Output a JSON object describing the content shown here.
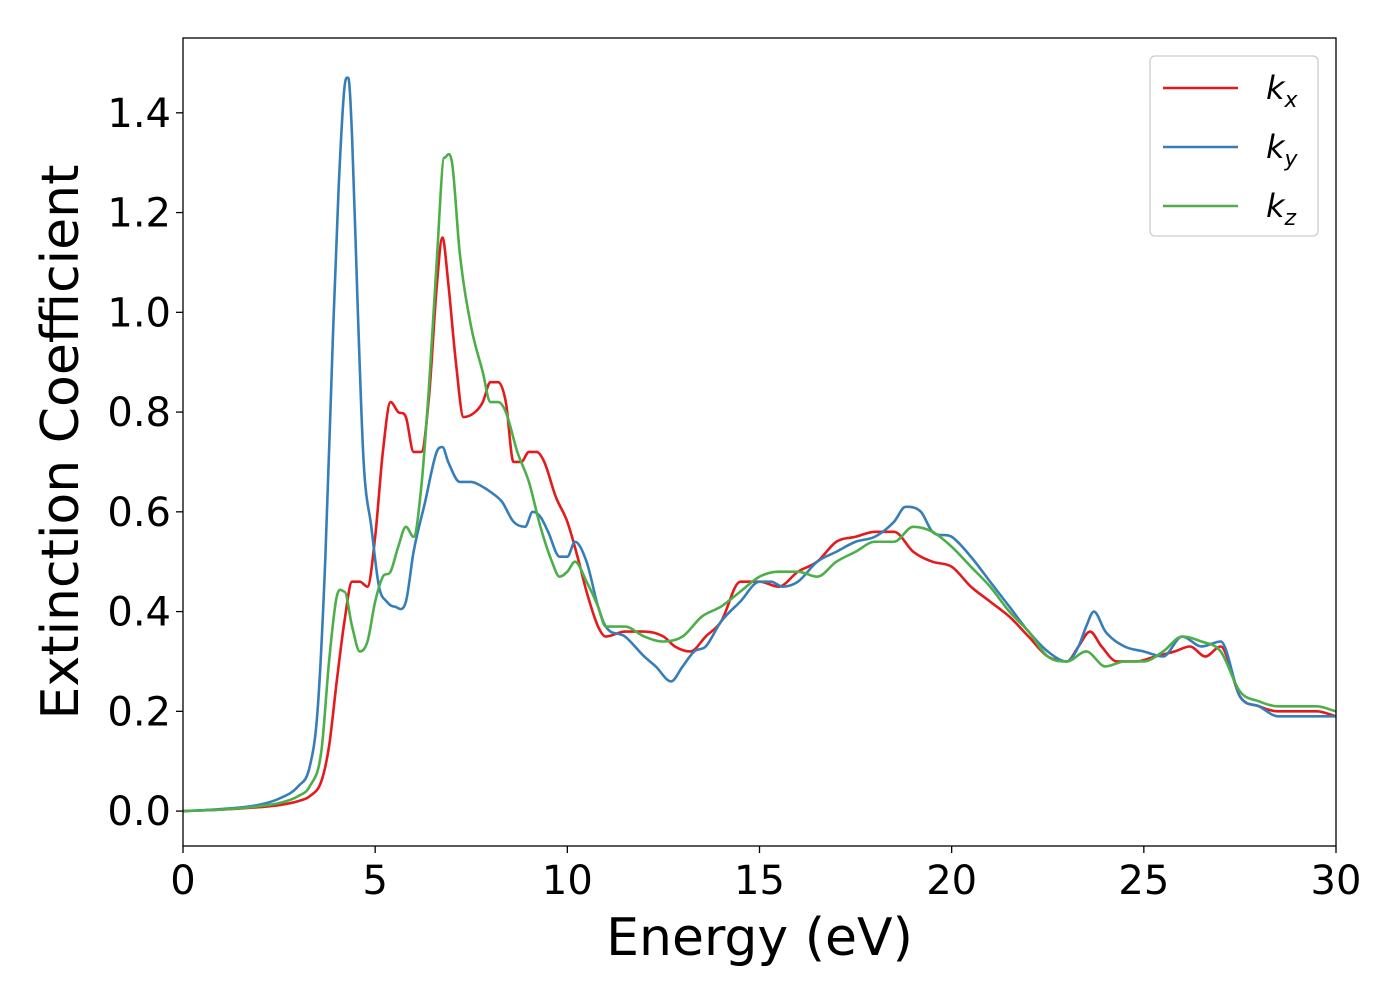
{
  "chart_data": {
    "type": "line",
    "title": "",
    "xlabel": "Energy (eV)",
    "ylabel": "Extinction Coefficient",
    "xlim": [
      0,
      30
    ],
    "ylim": [
      -0.07,
      1.55
    ],
    "xticks": [
      0,
      5,
      10,
      15,
      20,
      25,
      30
    ],
    "xtick_labels": [
      "0",
      "5",
      "10",
      "15",
      "20",
      "25",
      "30"
    ],
    "yticks": [
      0.0,
      0.2,
      0.4,
      0.6,
      0.8,
      1.0,
      1.2,
      1.4
    ],
    "ytick_labels": [
      "0.0",
      "0.2",
      "0.4",
      "0.6",
      "0.8",
      "1.0",
      "1.2",
      "1.4"
    ],
    "grid": false,
    "legend_position": "top-right",
    "series": [
      {
        "name": "k_x",
        "label_main": "k",
        "label_sub": "x",
        "color": "#e41a1c",
        "x": [
          0,
          1,
          2,
          2.5,
          3.0,
          3.3,
          3.6,
          3.8,
          4.0,
          4.2,
          4.4,
          4.6,
          4.8,
          5.0,
          5.2,
          5.4,
          5.6,
          5.8,
          6.0,
          6.2,
          6.4,
          6.6,
          6.75,
          6.9,
          7.1,
          7.3,
          7.6,
          7.8,
          8.0,
          8.2,
          8.4,
          8.6,
          8.8,
          9.0,
          9.2,
          9.4,
          9.7,
          10.0,
          10.3,
          10.5,
          10.8,
          11.0,
          11.5,
          12.0,
          12.5,
          12.8,
          13.2,
          13.6,
          14.0,
          14.5,
          15.0,
          15.5,
          16.0,
          16.5,
          17.0,
          17.5,
          18.0,
          18.5,
          19.0,
          19.5,
          20.0,
          20.5,
          21.0,
          21.5,
          22.0,
          22.5,
          23.0,
          23.3,
          23.6,
          23.9,
          24.3,
          24.8,
          25.3,
          25.8,
          26.2,
          26.6,
          27.0,
          27.5,
          28.0,
          28.5,
          29.0,
          29.5,
          30.0
        ],
        "y": [
          0.0,
          0.003,
          0.008,
          0.012,
          0.02,
          0.03,
          0.06,
          0.13,
          0.26,
          0.38,
          0.46,
          0.46,
          0.45,
          0.55,
          0.72,
          0.82,
          0.8,
          0.79,
          0.72,
          0.72,
          0.83,
          1.05,
          1.15,
          1.06,
          0.9,
          0.79,
          0.8,
          0.82,
          0.86,
          0.86,
          0.82,
          0.7,
          0.7,
          0.72,
          0.72,
          0.7,
          0.63,
          0.58,
          0.5,
          0.44,
          0.37,
          0.35,
          0.36,
          0.36,
          0.35,
          0.33,
          0.32,
          0.35,
          0.38,
          0.46,
          0.46,
          0.45,
          0.48,
          0.5,
          0.54,
          0.55,
          0.56,
          0.56,
          0.52,
          0.5,
          0.49,
          0.45,
          0.42,
          0.39,
          0.35,
          0.31,
          0.3,
          0.33,
          0.36,
          0.33,
          0.3,
          0.3,
          0.31,
          0.32,
          0.33,
          0.31,
          0.33,
          0.23,
          0.21,
          0.2,
          0.2,
          0.2,
          0.19
        ]
      },
      {
        "name": "k_y",
        "label_main": "k",
        "label_sub": "y",
        "color": "#377eb8",
        "x": [
          0,
          1,
          2,
          2.5,
          3.0,
          3.3,
          3.5,
          3.7,
          3.9,
          4.05,
          4.2,
          4.3,
          4.4,
          4.55,
          4.7,
          4.9,
          5.1,
          5.3,
          5.5,
          5.8,
          6.0,
          6.3,
          6.6,
          6.75,
          6.9,
          7.2,
          7.5,
          7.8,
          8.0,
          8.3,
          8.6,
          8.9,
          9.1,
          9.3,
          9.5,
          9.8,
          10.0,
          10.2,
          10.5,
          10.8,
          11.0,
          11.5,
          12.0,
          12.3,
          12.7,
          13.0,
          13.3,
          13.6,
          14.0,
          14.5,
          15.0,
          15.3,
          15.6,
          16.0,
          16.5,
          17.0,
          17.5,
          18.0,
          18.5,
          18.8,
          19.2,
          19.5,
          20.0,
          20.5,
          21.0,
          21.5,
          22.0,
          22.5,
          23.0,
          23.3,
          23.5,
          23.7,
          24.0,
          24.5,
          25.0,
          25.5,
          26.0,
          26.5,
          27.0,
          27.5,
          28.0,
          28.5,
          29.0,
          29.5,
          30.0
        ],
        "y": [
          0.0,
          0.004,
          0.013,
          0.025,
          0.05,
          0.09,
          0.2,
          0.5,
          0.95,
          1.25,
          1.45,
          1.47,
          1.35,
          1.0,
          0.7,
          0.57,
          0.45,
          0.42,
          0.41,
          0.42,
          0.52,
          0.62,
          0.72,
          0.73,
          0.7,
          0.66,
          0.66,
          0.65,
          0.64,
          0.62,
          0.58,
          0.57,
          0.6,
          0.59,
          0.56,
          0.51,
          0.51,
          0.54,
          0.5,
          0.41,
          0.37,
          0.35,
          0.31,
          0.29,
          0.26,
          0.29,
          0.32,
          0.33,
          0.38,
          0.42,
          0.46,
          0.46,
          0.45,
          0.46,
          0.5,
          0.52,
          0.54,
          0.55,
          0.58,
          0.61,
          0.6,
          0.56,
          0.55,
          0.51,
          0.46,
          0.41,
          0.36,
          0.32,
          0.3,
          0.33,
          0.37,
          0.4,
          0.36,
          0.33,
          0.32,
          0.31,
          0.35,
          0.33,
          0.34,
          0.23,
          0.21,
          0.19,
          0.19,
          0.19,
          0.19
        ]
      },
      {
        "name": "k_z",
        "label_main": "k",
        "label_sub": "z",
        "color": "#4daf4a",
        "x": [
          0,
          1,
          2,
          2.5,
          3.0,
          3.3,
          3.6,
          3.8,
          4.0,
          4.2,
          4.4,
          4.6,
          4.8,
          5.0,
          5.2,
          5.4,
          5.6,
          5.8,
          6.0,
          6.2,
          6.4,
          6.6,
          6.8,
          7.0,
          7.2,
          7.5,
          7.8,
          8.0,
          8.2,
          8.4,
          8.7,
          9.0,
          9.3,
          9.6,
          9.8,
          10.0,
          10.2,
          10.5,
          10.8,
          11.0,
          11.5,
          12.0,
          12.5,
          13.0,
          13.5,
          14.0,
          14.5,
          15.0,
          15.5,
          16.0,
          16.5,
          17.0,
          17.5,
          18.0,
          18.5,
          19.0,
          19.5,
          20.0,
          20.5,
          21.0,
          21.5,
          22.0,
          22.5,
          23.0,
          23.5,
          24.0,
          24.5,
          25.0,
          25.5,
          26.0,
          26.5,
          27.0,
          27.5,
          28.0,
          28.5,
          29.0,
          29.5,
          30.0
        ],
        "y": [
          0.0,
          0.003,
          0.01,
          0.016,
          0.03,
          0.05,
          0.12,
          0.3,
          0.43,
          0.44,
          0.37,
          0.32,
          0.34,
          0.42,
          0.47,
          0.48,
          0.53,
          0.57,
          0.55,
          0.65,
          0.85,
          1.1,
          1.31,
          1.3,
          1.12,
          0.97,
          0.88,
          0.82,
          0.82,
          0.8,
          0.72,
          0.66,
          0.57,
          0.5,
          0.47,
          0.48,
          0.5,
          0.46,
          0.41,
          0.37,
          0.37,
          0.35,
          0.34,
          0.35,
          0.39,
          0.41,
          0.44,
          0.47,
          0.48,
          0.48,
          0.47,
          0.5,
          0.52,
          0.54,
          0.54,
          0.57,
          0.56,
          0.53,
          0.49,
          0.45,
          0.4,
          0.36,
          0.31,
          0.3,
          0.32,
          0.29,
          0.3,
          0.3,
          0.32,
          0.35,
          0.34,
          0.32,
          0.24,
          0.22,
          0.21,
          0.21,
          0.21,
          0.2
        ]
      }
    ]
  }
}
